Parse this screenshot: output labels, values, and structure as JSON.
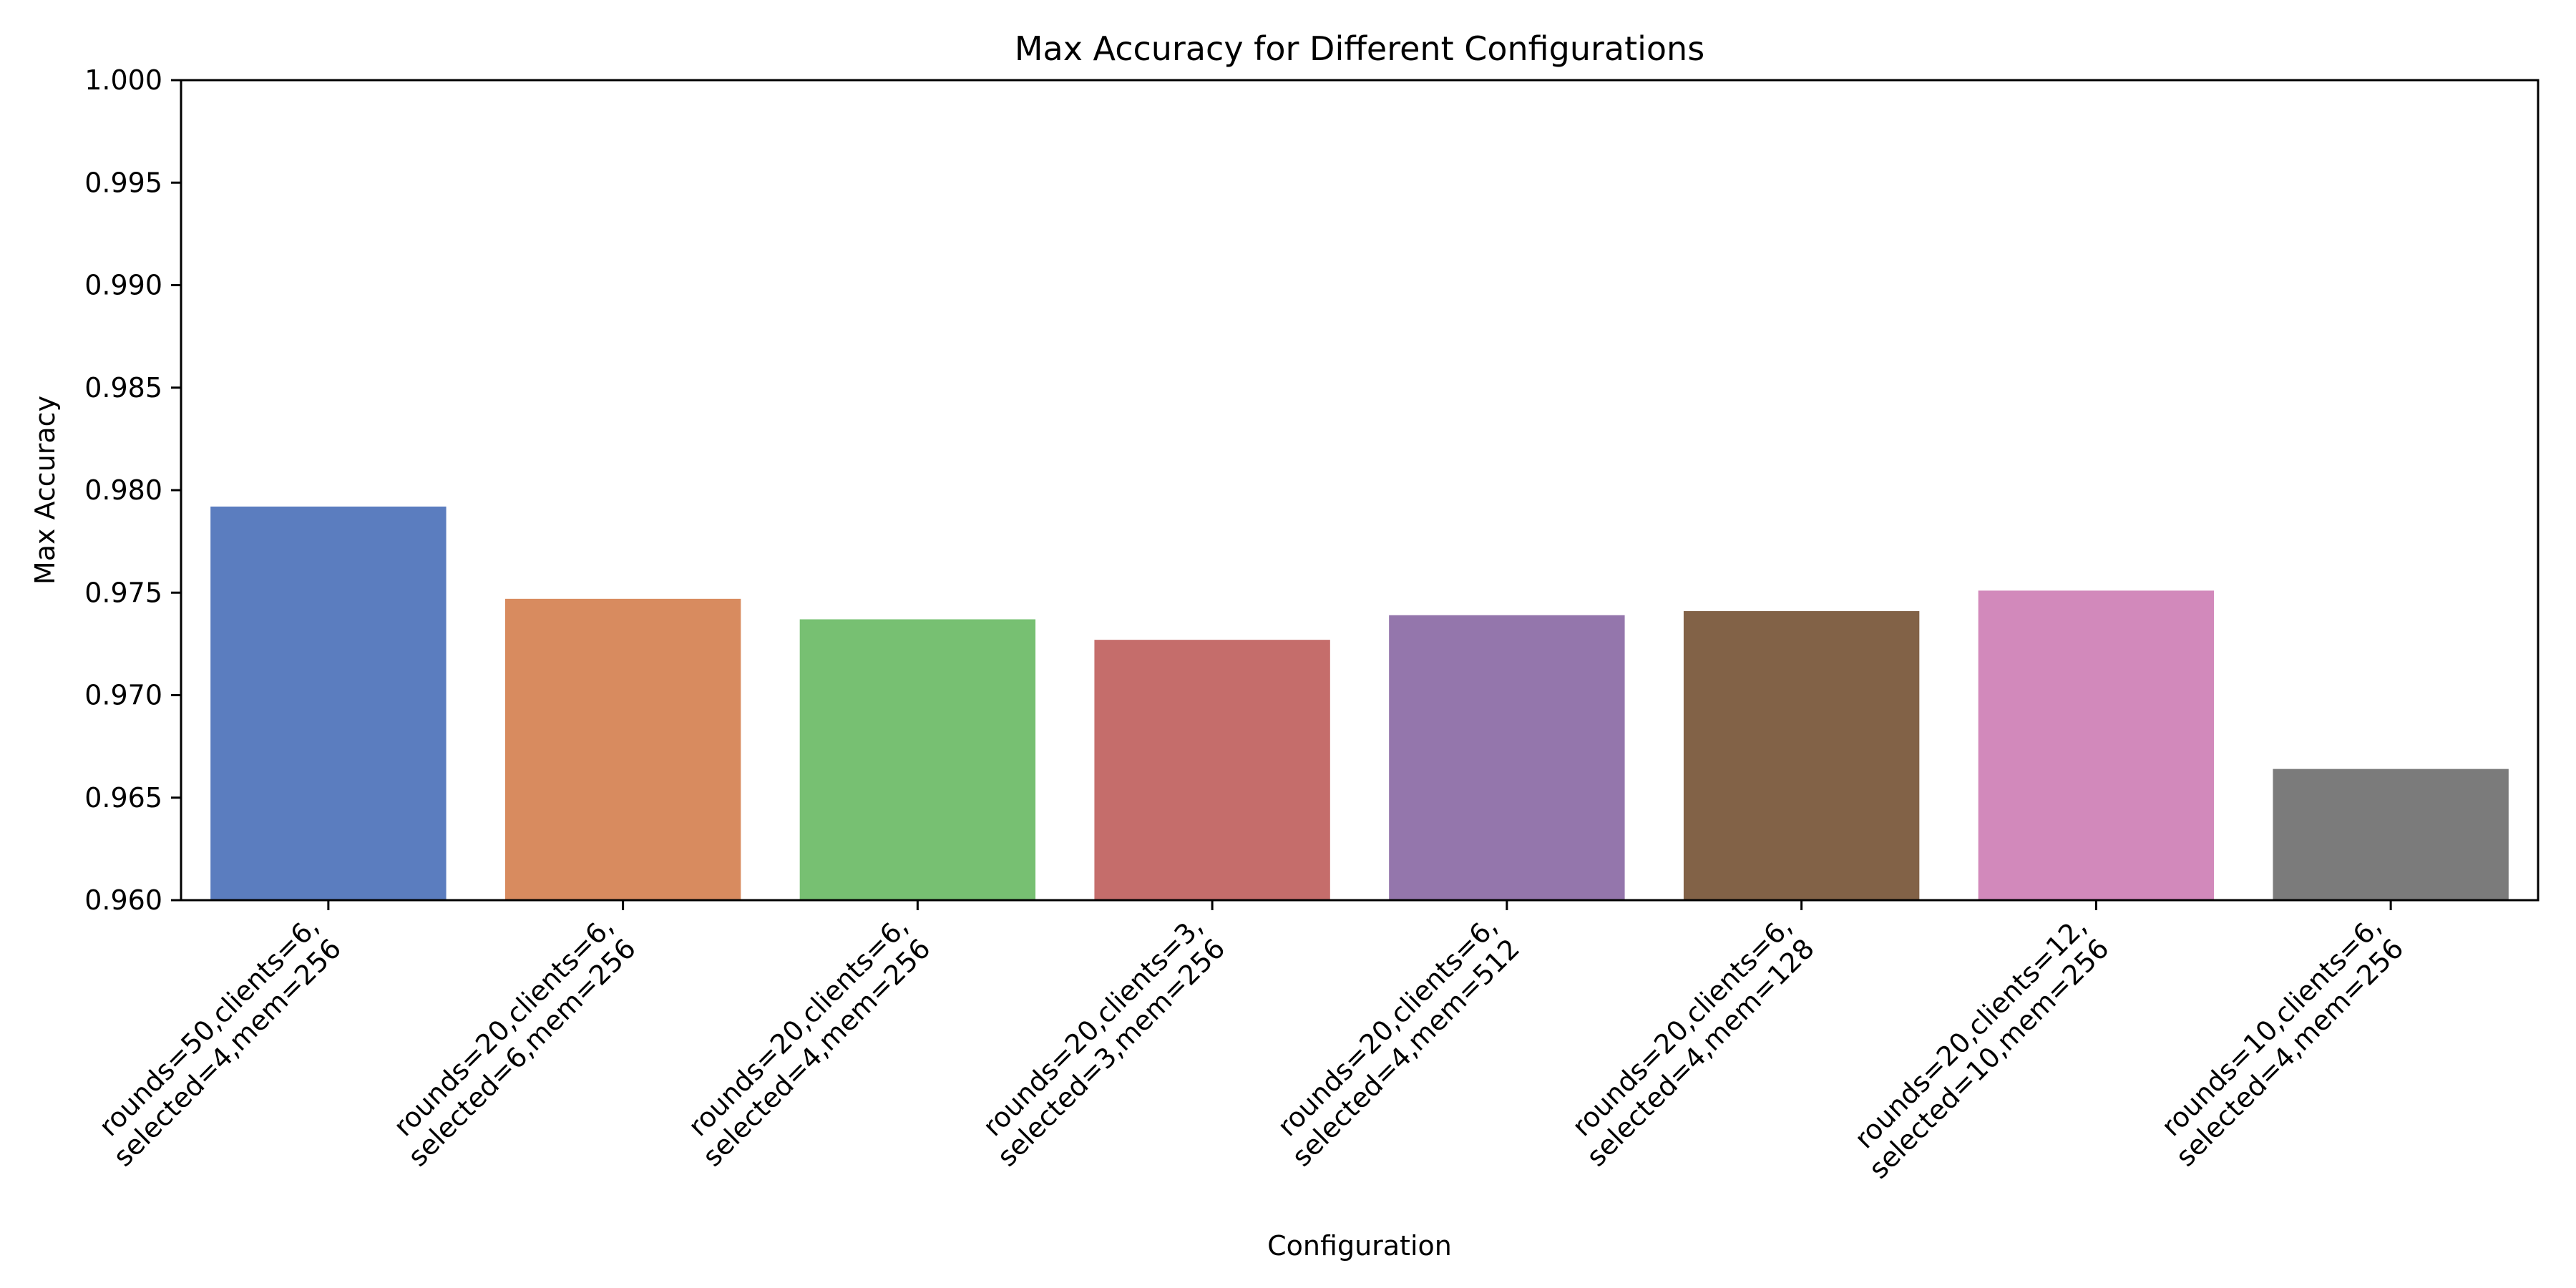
{
  "chart_data": {
    "type": "bar",
    "title": "Max Accuracy for Different Configurations",
    "xlabel": "Configuration",
    "ylabel": "Max Accuracy",
    "ylim": [
      0.96,
      1.0
    ],
    "yticks": [
      "0.960",
      "0.965",
      "0.970",
      "0.975",
      "0.980",
      "0.985",
      "0.990",
      "0.995",
      "1.000"
    ],
    "grid": false,
    "legend": "none",
    "categories": [
      [
        "rounds=50,clients=6,",
        "selected=4,mem=256"
      ],
      [
        "rounds=20,clients=6,",
        "selected=6,mem=256"
      ],
      [
        "rounds=20,clients=6,",
        "selected=4,mem=256"
      ],
      [
        "rounds=20,clients=3,",
        "selected=3,mem=256"
      ],
      [
        "rounds=20,clients=6,",
        "selected=4,mem=512"
      ],
      [
        "rounds=20,clients=6,",
        "selected=4,mem=128"
      ],
      [
        "rounds=20,clients=12,",
        "selected=10,mem=256"
      ],
      [
        "rounds=10,clients=6,",
        "selected=4,mem=256"
      ]
    ],
    "values": [
      0.9792,
      0.9747,
      0.9737,
      0.9727,
      0.9739,
      0.9741,
      0.9751,
      0.9664
    ],
    "colors": [
      "#5b7dbf",
      "#d88b5f",
      "#77c072",
      "#c56d6b",
      "#9476ac",
      "#826247",
      "#d289bb",
      "#7b7b7b"
    ]
  }
}
